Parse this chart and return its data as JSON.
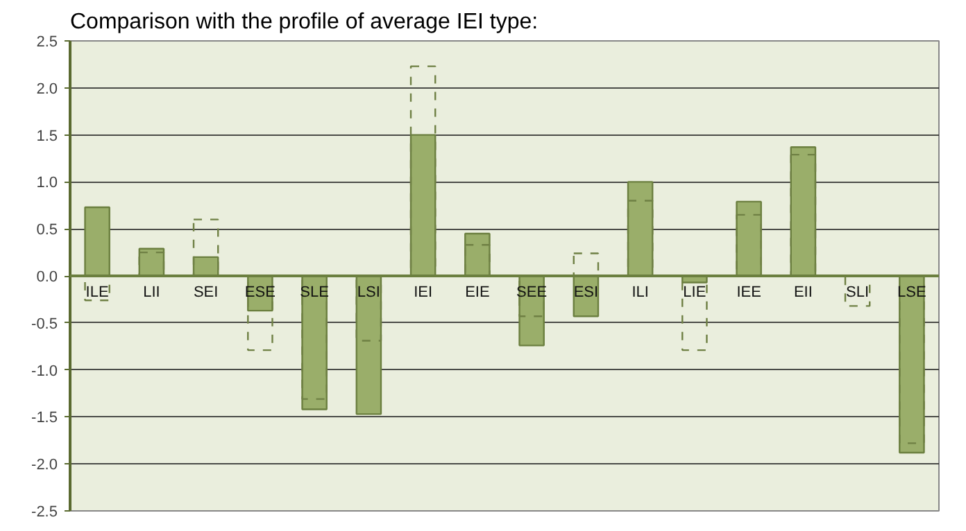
{
  "chart_data": {
    "type": "bar",
    "title": "Comparison with the profile of average IEI type:",
    "categories": [
      "ILE",
      "LII",
      "SEI",
      "ESE",
      "SLE",
      "LSI",
      "IEI",
      "EIE",
      "SEE",
      "ESI",
      "ILI",
      "LIE",
      "IEE",
      "EII",
      "SLI",
      "LSE"
    ],
    "series": [
      {
        "color": "#9aae6a",
        "values": [
          0.73,
          0.29,
          0.2,
          -0.37,
          -1.42,
          -1.47,
          1.5,
          0.45,
          -0.74,
          -0.43,
          1.0,
          -0.07,
          0.79,
          1.37,
          null,
          -1.88
        ]
      },
      {
        "color": "#6f8044",
        "line_style": "dashed",
        "values": [
          -0.26,
          0.25,
          0.6,
          -0.79,
          -1.31,
          -0.69,
          2.23,
          0.33,
          -0.43,
          0.24,
          0.8,
          -0.79,
          0.65,
          1.29,
          -0.32,
          -1.78
        ]
      }
    ],
    "ylim": [
      -2.5,
      2.5
    ],
    "yticks": [
      {
        "value": 2.5,
        "label": "2.5"
      },
      {
        "value": 2.0,
        "label": "2.0"
      },
      {
        "value": 1.5,
        "label": "1.5"
      },
      {
        "value": 1.0,
        "label": "1.0"
      },
      {
        "value": 0.5,
        "label": "0.5"
      },
      {
        "value": 0.0,
        "label": "0.0"
      },
      {
        "value": -0.5,
        "label": "-0.5"
      },
      {
        "value": -1.0,
        "label": "-1.0"
      },
      {
        "value": -1.5,
        "label": "-1.5"
      },
      {
        "value": -2.0,
        "label": "-2.0"
      },
      {
        "value": -2.5,
        "label": "-2.5"
      }
    ],
    "grid": "y"
  }
}
